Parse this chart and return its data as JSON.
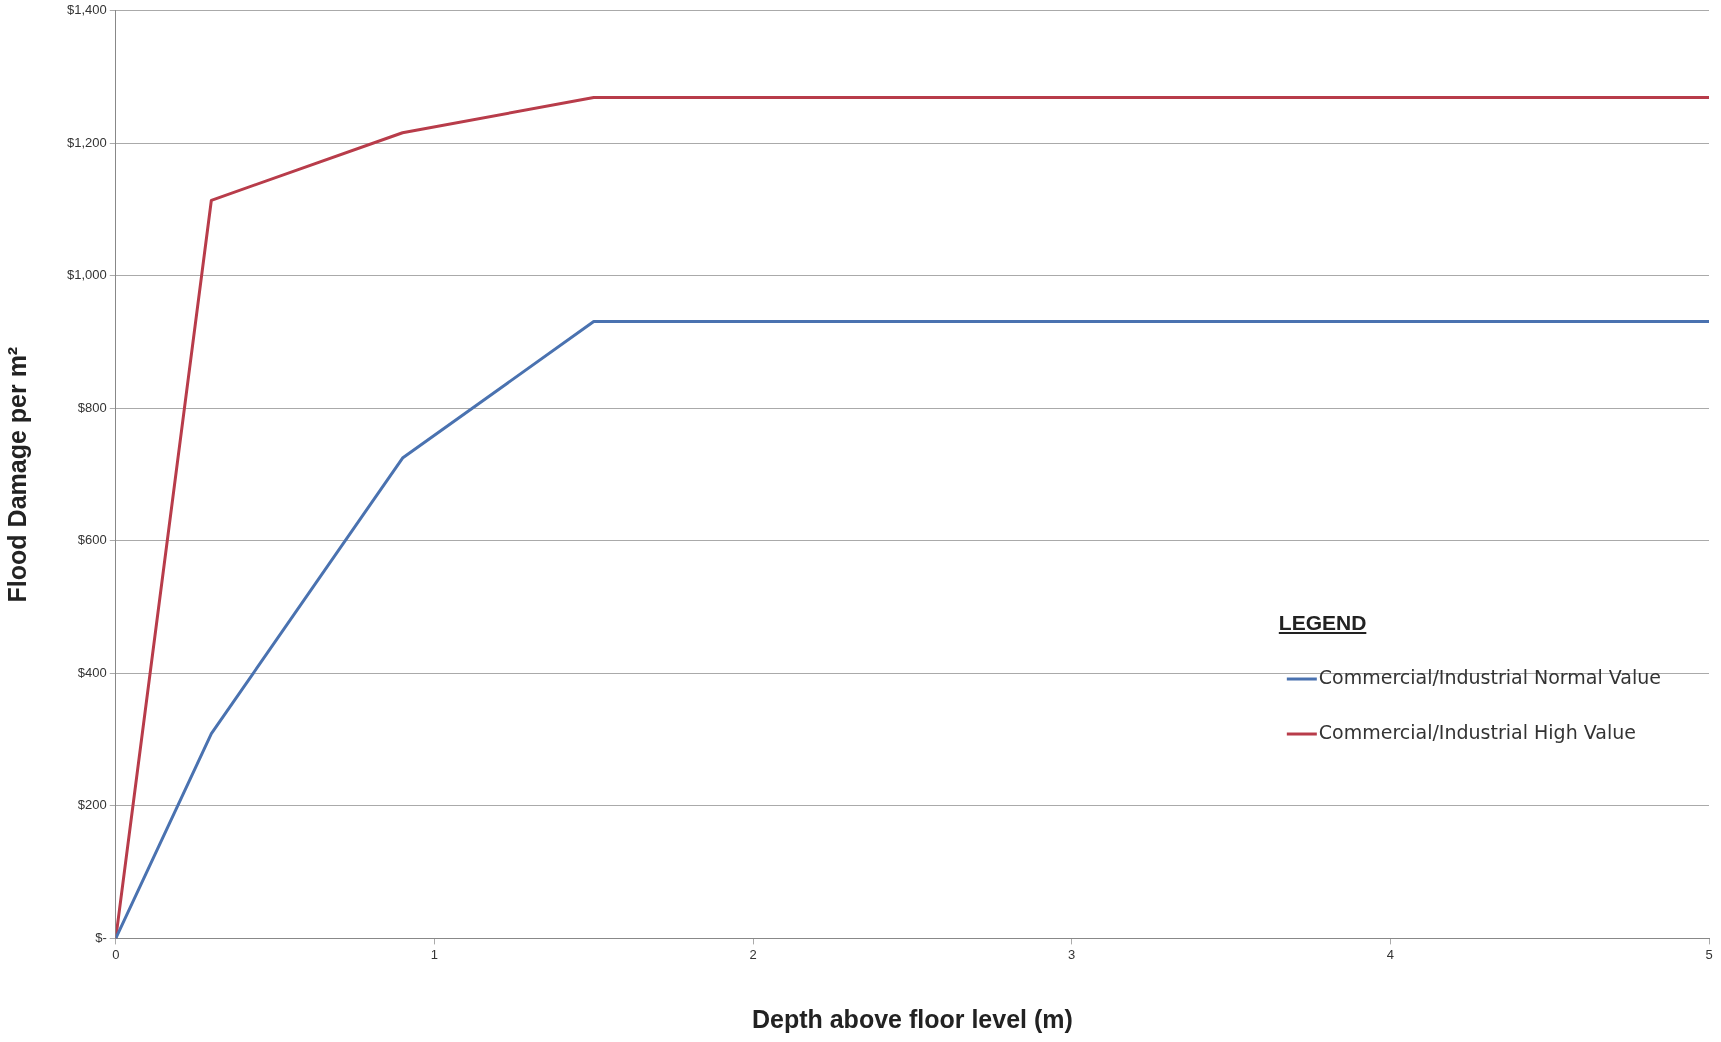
{
  "chart_data": {
    "type": "line",
    "xlabel": "Depth above floor level (m)",
    "ylabel": "Flood Damage per m²",
    "legend_title": "LEGEND",
    "xlim": [
      0,
      5
    ],
    "xticks": [
      0,
      1,
      2,
      3,
      4,
      5
    ],
    "ylim": [
      0,
      1400
    ],
    "yticks": [
      {
        "value": 0,
        "label": "$-"
      },
      {
        "value": 200,
        "label": "$200"
      },
      {
        "value": 400,
        "label": "$400"
      },
      {
        "value": 600,
        "label": "$600"
      },
      {
        "value": 800,
        "label": "$800"
      },
      {
        "value": 1000,
        "label": "$1,000"
      },
      {
        "value": 1200,
        "label": "$1,200"
      },
      {
        "value": 1400,
        "label": "$1,400"
      }
    ],
    "grid": "y",
    "legend": "bottom right",
    "marker": "none",
    "line_style": "solid",
    "series": [
      {
        "name": "Commercial/Industrial Normal Value",
        "color": "#4a72b0",
        "x": [
          0,
          0.3,
          0.9,
          1.5,
          5
        ],
        "values": [
          0,
          309,
          725,
          931,
          931
        ]
      },
      {
        "name": "Commercial/Industrial High Value",
        "color": "#b83c4a",
        "x": [
          0,
          0.3,
          0.9,
          1.5,
          5
        ],
        "values": [
          0,
          1114,
          1216,
          1269,
          1269
        ]
      }
    ]
  }
}
